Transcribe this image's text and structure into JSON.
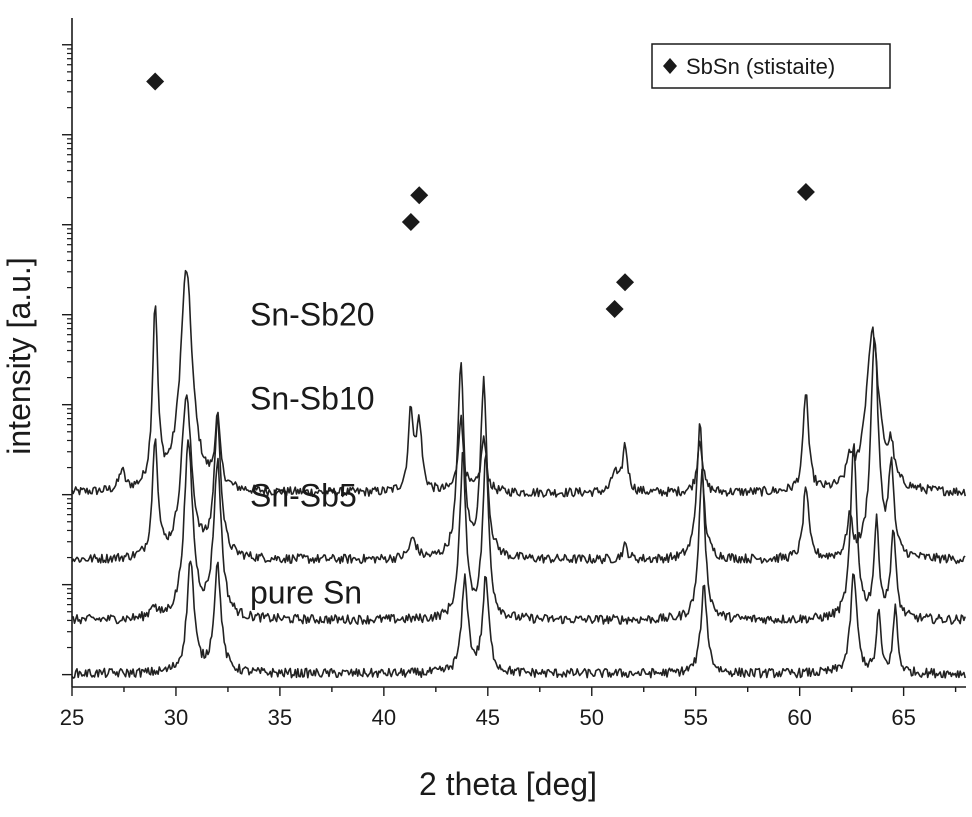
{
  "chart_data": {
    "type": "line",
    "title": "",
    "xlabel": "2 theta [deg]",
    "ylabel": "intensity [a.u.]",
    "xlim": [
      25,
      68
    ],
    "x_ticks": [
      25,
      30,
      35,
      40,
      45,
      50,
      55,
      60,
      65
    ],
    "y_scale": "log",
    "y_ticks_labeled": false,
    "grid": false,
    "legend": {
      "placement": "top-right",
      "marker": "diamond",
      "label": "SbSn (stistaite)"
    },
    "series": [
      {
        "name": "Sn-Sb20",
        "baseline": 0.29,
        "peaks": [
          {
            "x": 27.4,
            "h": 0.03,
            "w": 0.15
          },
          {
            "x": 29.0,
            "h": 0.27,
            "w": 0.15
          },
          {
            "x": 30.5,
            "h": 0.33,
            "w": 0.35
          },
          {
            "x": 32.0,
            "h": 0.1,
            "w": 0.15
          },
          {
            "x": 41.3,
            "h": 0.12,
            "w": 0.15
          },
          {
            "x": 41.7,
            "h": 0.1,
            "w": 0.15
          },
          {
            "x": 43.7,
            "h": 0.11,
            "w": 0.15
          },
          {
            "x": 44.8,
            "h": 0.08,
            "w": 0.15
          },
          {
            "x": 51.1,
            "h": 0.03,
            "w": 0.15
          },
          {
            "x": 51.6,
            "h": 0.07,
            "w": 0.15
          },
          {
            "x": 55.2,
            "h": 0.08,
            "w": 0.15
          },
          {
            "x": 60.3,
            "h": 0.15,
            "w": 0.15
          },
          {
            "x": 62.4,
            "h": 0.04,
            "w": 0.15
          },
          {
            "x": 63.5,
            "h": 0.24,
            "w": 0.38
          },
          {
            "x": 64.4,
            "h": 0.05,
            "w": 0.15
          }
        ]
      },
      {
        "name": "Sn-Sb10",
        "baseline": 0.19,
        "peaks": [
          {
            "x": 29.0,
            "h": 0.18,
            "w": 0.15
          },
          {
            "x": 30.5,
            "h": 0.24,
            "w": 0.3
          },
          {
            "x": 32.0,
            "h": 0.2,
            "w": 0.2
          },
          {
            "x": 41.4,
            "h": 0.03,
            "w": 0.2
          },
          {
            "x": 43.7,
            "h": 0.29,
            "w": 0.18
          },
          {
            "x": 44.8,
            "h": 0.26,
            "w": 0.18
          },
          {
            "x": 51.6,
            "h": 0.02,
            "w": 0.15
          },
          {
            "x": 55.2,
            "h": 0.2,
            "w": 0.18
          },
          {
            "x": 60.3,
            "h": 0.11,
            "w": 0.15
          },
          {
            "x": 62.4,
            "h": 0.06,
            "w": 0.15
          },
          {
            "x": 63.6,
            "h": 0.33,
            "w": 0.22
          },
          {
            "x": 64.4,
            "h": 0.13,
            "w": 0.15
          }
        ]
      },
      {
        "name": "Sn-Sb5",
        "baseline": 0.1,
        "peaks": [
          {
            "x": 28.9,
            "h": 0.02,
            "w": 0.15
          },
          {
            "x": 30.6,
            "h": 0.26,
            "w": 0.25
          },
          {
            "x": 32.0,
            "h": 0.23,
            "w": 0.22
          },
          {
            "x": 43.8,
            "h": 0.24,
            "w": 0.18
          },
          {
            "x": 44.9,
            "h": 0.24,
            "w": 0.18
          },
          {
            "x": 55.3,
            "h": 0.22,
            "w": 0.18
          },
          {
            "x": 62.6,
            "h": 0.26,
            "w": 0.18
          },
          {
            "x": 63.7,
            "h": 0.14,
            "w": 0.15
          },
          {
            "x": 64.5,
            "h": 0.13,
            "w": 0.15
          }
        ]
      },
      {
        "name": "pure Sn",
        "baseline": 0.02,
        "peaks": [
          {
            "x": 30.7,
            "h": 0.17,
            "w": 0.2
          },
          {
            "x": 32.0,
            "h": 0.16,
            "w": 0.2
          },
          {
            "x": 43.9,
            "h": 0.14,
            "w": 0.18
          },
          {
            "x": 44.9,
            "h": 0.14,
            "w": 0.18
          },
          {
            "x": 55.4,
            "h": 0.13,
            "w": 0.18
          },
          {
            "x": 62.6,
            "h": 0.15,
            "w": 0.18
          },
          {
            "x": 63.8,
            "h": 0.09,
            "w": 0.12
          },
          {
            "x": 64.6,
            "h": 0.1,
            "w": 0.12
          }
        ]
      }
    ],
    "markers": [
      {
        "x": 29.0,
        "y": 0.905
      },
      {
        "x": 41.3,
        "y": 0.695
      },
      {
        "x": 41.7,
        "y": 0.735
      },
      {
        "x": 51.1,
        "y": 0.565
      },
      {
        "x": 51.6,
        "y": 0.605
      },
      {
        "x": 60.3,
        "y": 0.74
      }
    ],
    "series_label_y": [
      0.54,
      0.415,
      0.27,
      0.125
    ]
  }
}
